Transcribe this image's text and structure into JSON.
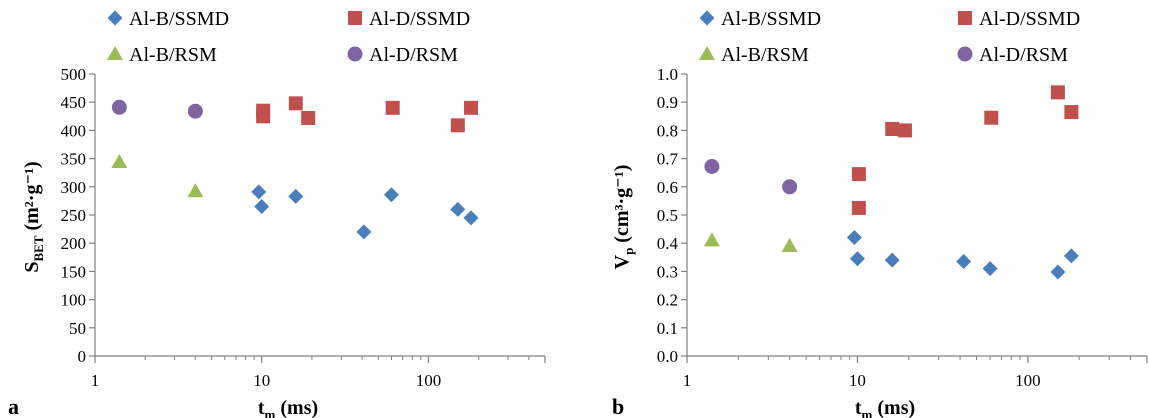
{
  "chart_data": [
    {
      "type": "scatter",
      "panel_label": "a",
      "xscale": "log",
      "xlim": [
        1,
        500
      ],
      "ylim": [
        0,
        500
      ],
      "x_ticks": [
        "1",
        "10",
        "100"
      ],
      "y_ticks": [
        "0",
        "50",
        "100",
        "150",
        "200",
        "250",
        "300",
        "350",
        "400",
        "450",
        "500"
      ],
      "xlabel": {
        "main": "t",
        "sub": "m",
        "rest": " (ms)"
      },
      "ylabel": {
        "main": "S",
        "sub": "BET",
        "rest": " (m²·g⁻¹)"
      },
      "grid": false,
      "legend_position": "top",
      "series": [
        {
          "name": "Al-B/SSMD",
          "marker": "diamond",
          "color": "#4a7ebb",
          "points": [
            [
              9.6,
              291
            ],
            [
              10,
              265
            ],
            [
              16,
              283
            ],
            [
              41,
              220
            ],
            [
              60,
              286
            ],
            [
              150,
              260
            ],
            [
              180,
              245
            ]
          ]
        },
        {
          "name": "Al-D/SSMD",
          "marker": "square",
          "color": "#c0504d",
          "points": [
            [
              10.2,
              435
            ],
            [
              10.2,
              425
            ],
            [
              16,
              448
            ],
            [
              19,
              422
            ],
            [
              61,
              440
            ],
            [
              150,
              409
            ],
            [
              180,
              440
            ]
          ]
        },
        {
          "name": "Al-B/RSM",
          "marker": "triangle",
          "color": "#9bbb59",
          "points": [
            [
              1.4,
              344
            ],
            [
              4.0,
              292
            ]
          ]
        },
        {
          "name": "Al-D/RSM",
          "marker": "circle",
          "color": "#8064a2",
          "points": [
            [
              1.4,
              441
            ],
            [
              4.0,
              434
            ]
          ]
        }
      ]
    },
    {
      "type": "scatter",
      "panel_label": "b",
      "xscale": "log",
      "xlim": [
        1,
        500
      ],
      "ylim": [
        0,
        1.0
      ],
      "x_ticks": [
        "1",
        "10",
        "100"
      ],
      "y_ticks": [
        "0.0",
        "0.1",
        "0.2",
        "0.3",
        "0.4",
        "0.5",
        "0.6",
        "0.7",
        "0.8",
        "0.9",
        "1.0"
      ],
      "xlabel": {
        "main": "t",
        "sub": "m",
        "rest": " (ms)"
      },
      "ylabel": {
        "main": "V",
        "sub": "p",
        "rest": " (cm³·g⁻¹)"
      },
      "grid": false,
      "legend_position": "top",
      "series": [
        {
          "name": "Al-B/SSMD",
          "marker": "diamond",
          "color": "#4a7ebb",
          "points": [
            [
              9.6,
              0.42
            ],
            [
              10,
              0.345
            ],
            [
              16,
              0.34
            ],
            [
              42,
              0.335
            ],
            [
              60,
              0.31
            ],
            [
              150,
              0.298
            ],
            [
              180,
              0.355
            ]
          ]
        },
        {
          "name": "Al-D/SSMD",
          "marker": "square",
          "color": "#c0504d",
          "points": [
            [
              10.2,
              0.645
            ],
            [
              10.2,
              0.525
            ],
            [
              16,
              0.805
            ],
            [
              19,
              0.8
            ],
            [
              61,
              0.845
            ],
            [
              150,
              0.935
            ],
            [
              180,
              0.865
            ]
          ]
        },
        {
          "name": "Al-B/RSM",
          "marker": "triangle",
          "color": "#9bbb59",
          "points": [
            [
              1.4,
              0.41
            ],
            [
              4.0,
              0.39
            ]
          ]
        },
        {
          "name": "Al-D/RSM",
          "marker": "circle",
          "color": "#8064a2",
          "points": [
            [
              1.4,
              0.672
            ],
            [
              4.0,
              0.6
            ]
          ]
        }
      ]
    }
  ]
}
